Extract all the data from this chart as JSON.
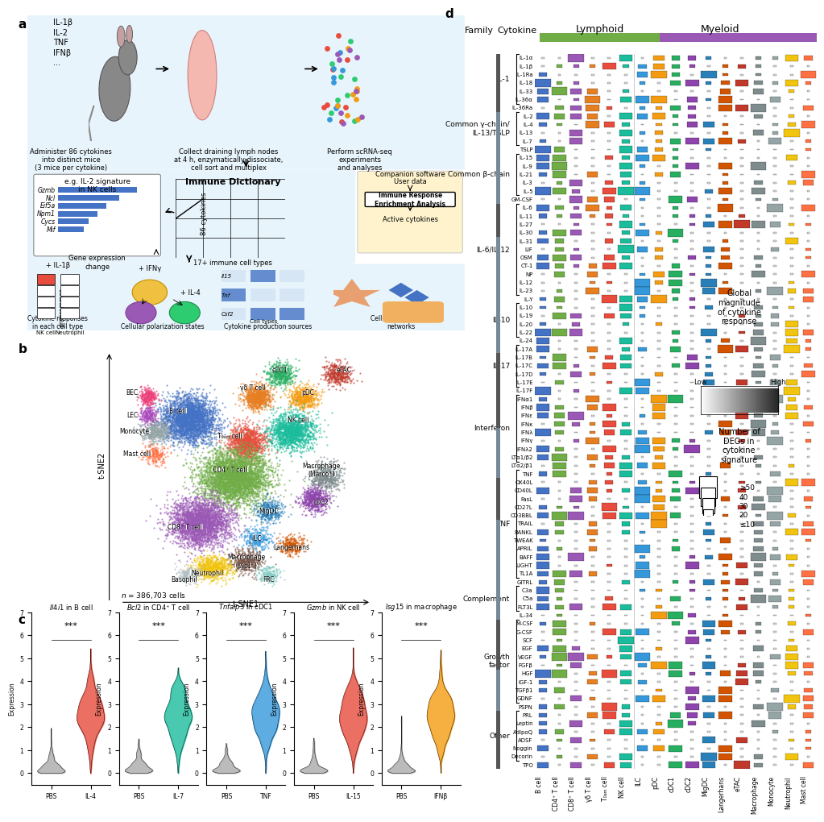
{
  "panel_d": {
    "families": {
      "IL-1": [
        "IL-1α",
        "IL-1β",
        "IL-1Ra",
        "IL-18",
        "IL-33",
        "IL-36α",
        "IL-36Ra"
      ],
      "Common γ-chain/\nIL-13/TSLP": [
        "IL-2",
        "IL-4",
        "IL-13",
        "IL-7",
        "TSLP"
      ],
      "Common β-chain": [
        "IL-15",
        "IL-9",
        "IL-21",
        "IL-3",
        "IL-5",
        "GM-CSF"
      ],
      "IL-6/IL-12": [
        "IL-6",
        "IL-11",
        "IL-27",
        "IL-30",
        "IL-31",
        "LIF",
        "OSM",
        "CT-1",
        "NP",
        "IL-12",
        "IL-23",
        "IL-γ"
      ],
      "IL-10": [
        "IL-10",
        "IL-19",
        "IL-20",
        "IL-22",
        "IL-24"
      ],
      "IL-17": [
        "IL-17A",
        "IL-17B",
        "IL-17C",
        "IL-17D",
        "IL-17E",
        "IL-17F"
      ],
      "Interferon": [
        "IFNα¹",
        "IFNβ",
        "IFNε",
        "IFNκ",
        "IFNλ",
        "IFNγ",
        "IFNλ2",
        "LTα1/β2",
        "LTα2/β1"
      ],
      "TNF": [
        "TNF",
        "OX40L",
        "CD40L",
        "FasL",
        "CD27L",
        "CD3BBL",
        "TRAIL",
        "RANKL",
        "TWEAK",
        "APRIL",
        "BAFF",
        "LIGHT",
        "TL1A",
        "GITRL"
      ],
      "Complement": [
        "C3a",
        "C5a",
        "FLT3L",
        "IL-34"
      ],
      "Growth\nfactor": [
        "M-CSF",
        "G-CSF",
        "SCF",
        "EGF",
        "VEGF",
        "FGFβ",
        "HGF",
        "IGF-1",
        "TGFβ1",
        "GDNF",
        "PSPN"
      ],
      "Other": [
        "PRL",
        "Leptin",
        "AdipoQ",
        "ADSF",
        "Noggin",
        "Decorin",
        "TPO"
      ]
    },
    "cell_types": [
      "B cell",
      "CD4⁺ T cell",
      "CD8⁺ T cell",
      "γδ T cell",
      "T₀ₐ₈ cell",
      "NK cell",
      "ILC",
      "pDC",
      "cDC1",
      "cDC2",
      "MigDC",
      "Langerhans",
      "eTAC",
      "Macrophage",
      "Monocyte",
      "Neutrophil",
      "Mast cell"
    ],
    "lymphoid_cells": [
      "B cell",
      "CD4⁺ T cell",
      "CD8⁺ T cell",
      "γδ T cell",
      "T₀ₐₘ cell",
      "NK cell"
    ],
    "myeloid_cells": [
      "ILC",
      "pDC",
      "cDC1",
      "cDC2",
      "MigDC",
      "Langerhans",
      "eTAC",
      "Macrophage",
      "Monocyte",
      "Neutrophil",
      "Mast cell"
    ],
    "cell_colors": {
      "B cell": "#4472C4",
      "CD4⁺ T cell": "#70AD47",
      "CD8⁺ T cell": "#9B59B6",
      "T₀ₐₘ cell": "#E74C3C",
      "γδ T cell": "#E67E22",
      "NK cell": "#1ABC9C",
      "ILC": "#3498DB",
      "pDC": "#F39C12",
      "cDC1": "#27AE60",
      "cDC2": "#8E44AD",
      "MigDC": "#2980B9",
      "Langerhans": "#D35400",
      "eTAC": "#C0392B",
      "Macrophage": "#16A085",
      "Monocyte": "#7F8C8D",
      "Neutrophil": "#F1C40F",
      "Mast cell": "#E74C3C"
    }
  }
}
